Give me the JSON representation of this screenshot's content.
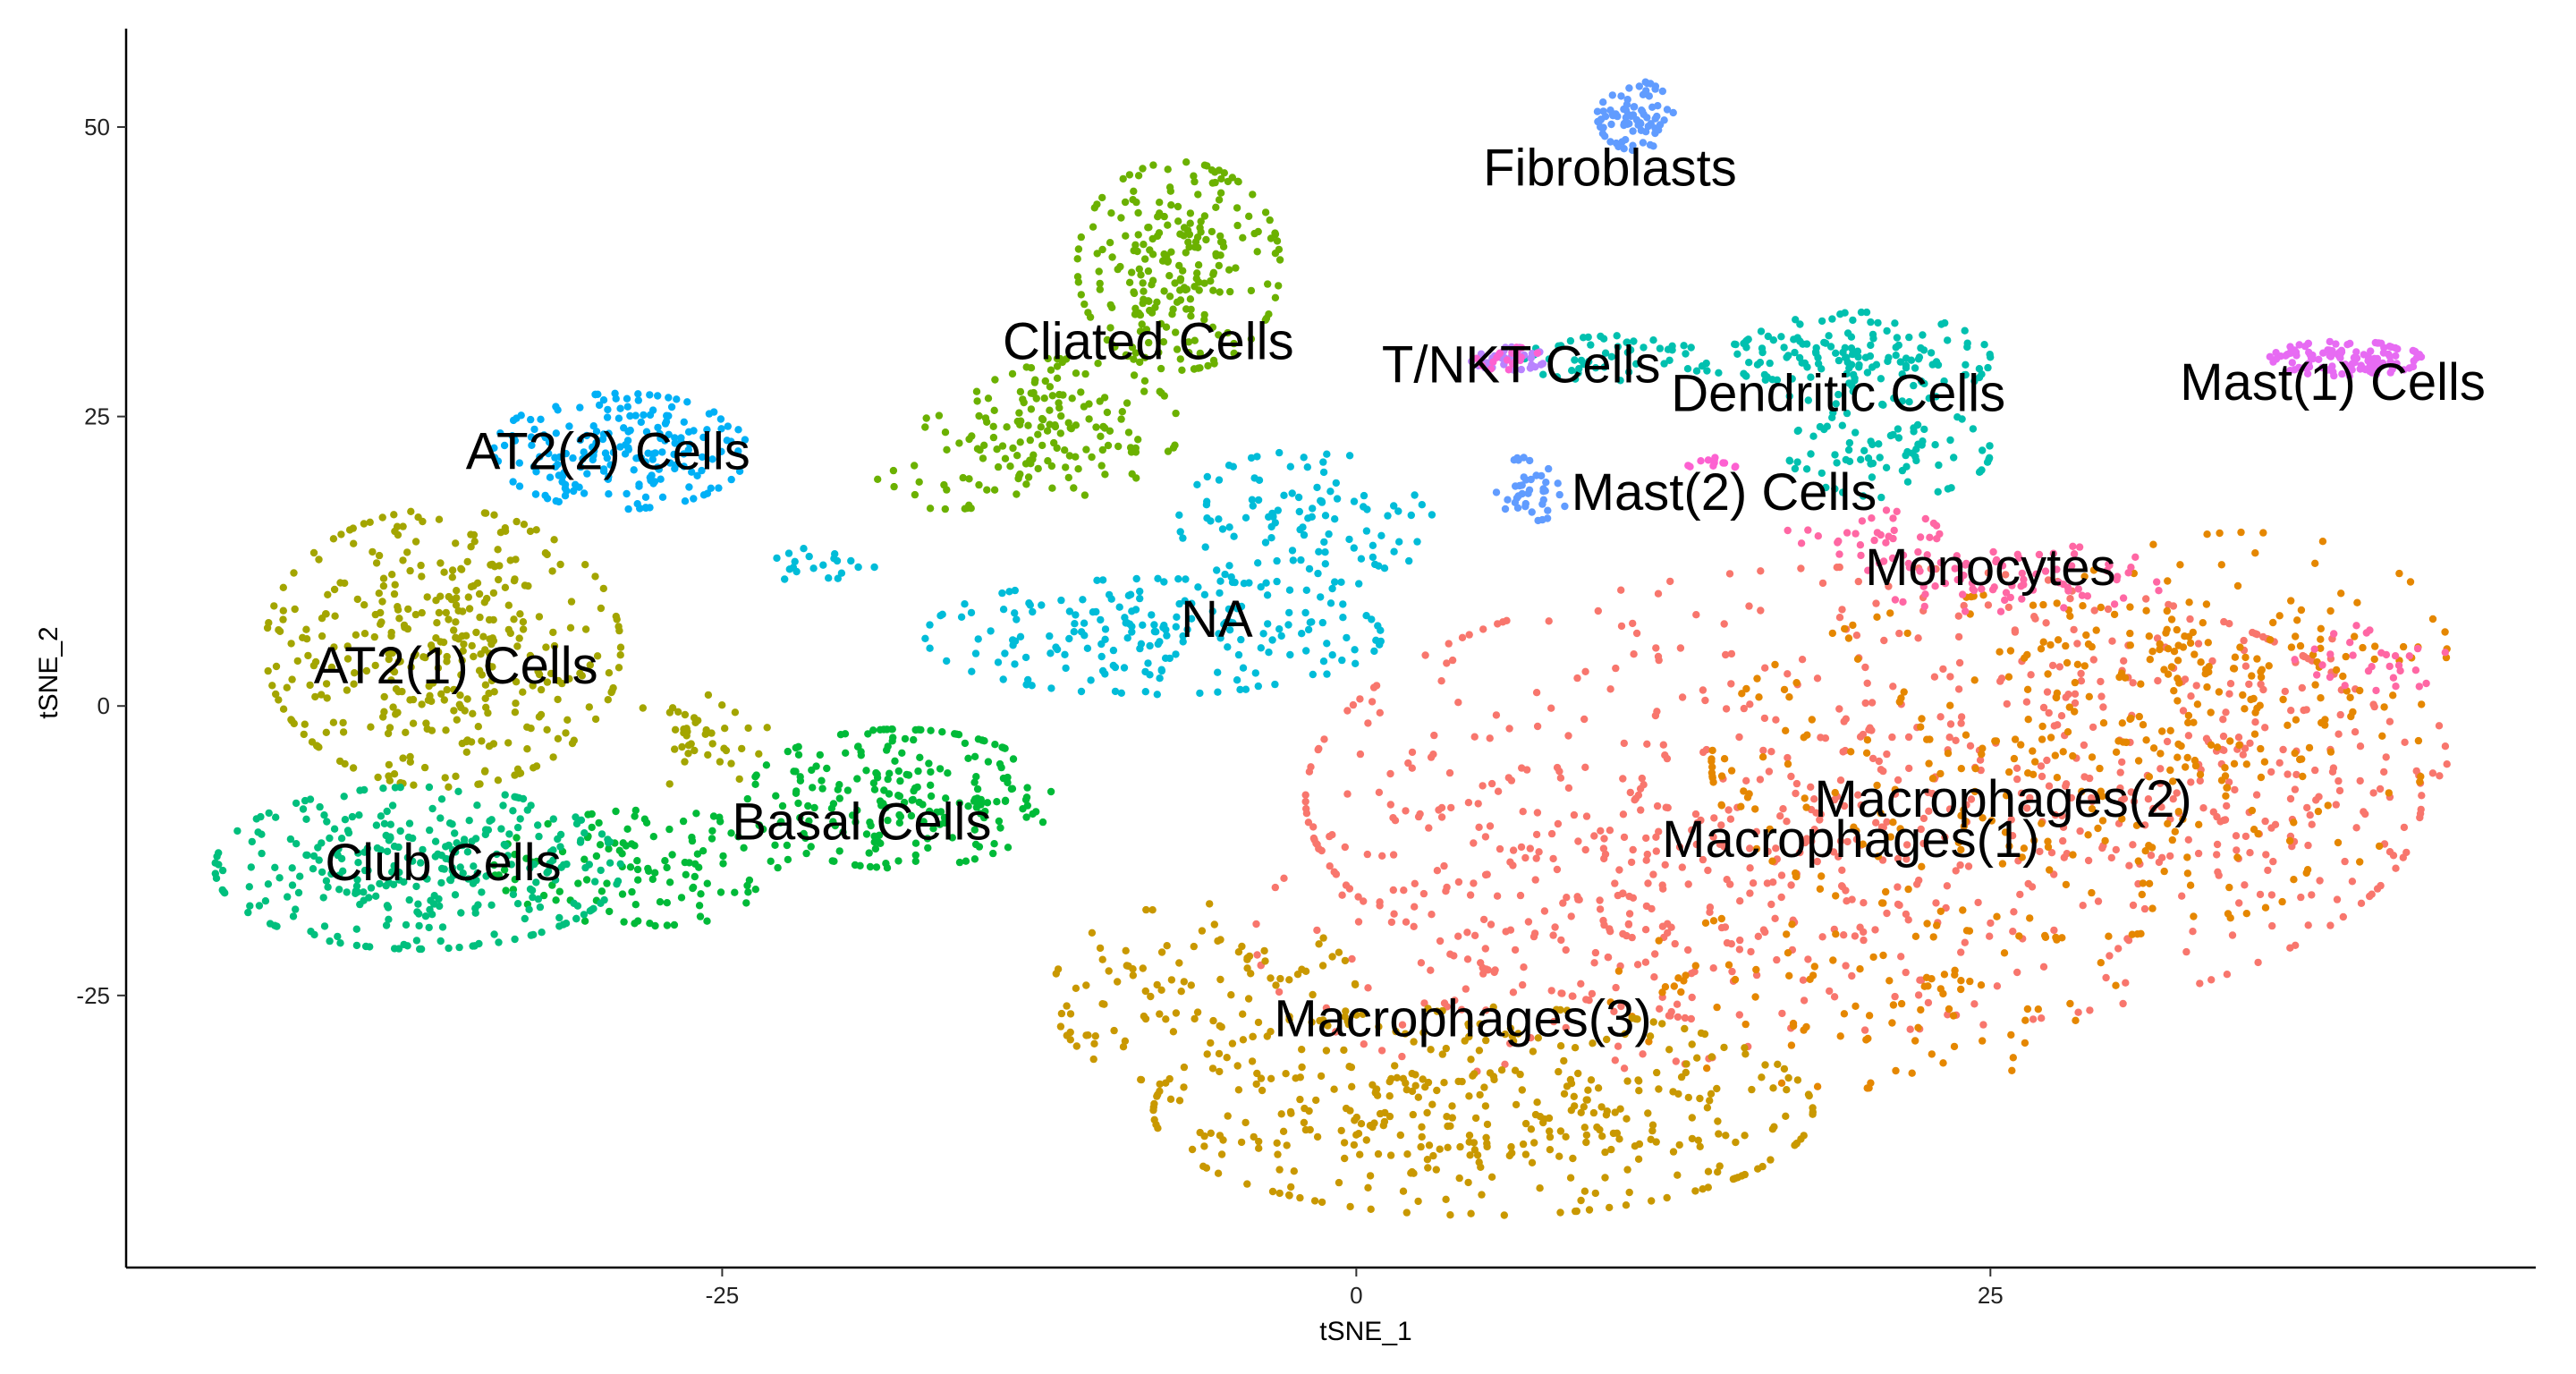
{
  "chart_data": {
    "type": "scatter",
    "title": "",
    "xlabel": "tSNE_1",
    "ylabel": "tSNE_2",
    "xlim": [
      -48.5,
      46.5
    ],
    "ylim": [
      -48.5,
      58.5
    ],
    "xticks": [
      -25,
      0,
      25
    ],
    "yticks": [
      -25,
      0,
      25,
      50
    ],
    "grid": false,
    "legend": "none",
    "clusters": [
      {
        "name": "Macrophages(1)",
        "color": "#F8766D",
        "label_pos": [
          19.5,
          -11.5
        ],
        "regions": [
          [
            20,
            -8,
            22,
            20,
            650
          ],
          [
            8,
            -20,
            12,
            12,
            180
          ],
          [
            35,
            -5,
            8,
            12,
            120
          ]
        ]
      },
      {
        "name": "Macrophages(2)",
        "color": "#E58700",
        "label_pos": [
          25.5,
          -8
        ],
        "regions": [
          [
            28,
            -5,
            14,
            15,
            300
          ],
          [
            35,
            5,
            8,
            10,
            120
          ],
          [
            20,
            -25,
            10,
            8,
            100
          ]
        ]
      },
      {
        "name": "Macrophages(3)",
        "color": "#C99800",
        "label_pos": [
          4.2,
          -27
        ],
        "regions": [
          [
            5,
            -35,
            13,
            9,
            400
          ],
          [
            -6,
            -25,
            6,
            8,
            110
          ]
        ]
      },
      {
        "name": "AT2(1) Cells",
        "color": "#A3A500",
        "label_pos": [
          -35.5,
          3.5
        ],
        "regions": [
          [
            -36,
            5,
            7,
            12,
            380
          ],
          [
            -26,
            -3,
            3,
            4,
            40
          ]
        ]
      },
      {
        "name": "Cliated Cells",
        "color": "#6BB100",
        "label_pos": [
          -8.2,
          31.5
        ],
        "regions": [
          [
            -7,
            38,
            4,
            9,
            240
          ],
          [
            -12,
            24,
            5,
            6,
            150
          ],
          [
            -16,
            19,
            3,
            2,
            20
          ]
        ]
      },
      {
        "name": "Basal Cells",
        "color": "#00BA38",
        "label_pos": [
          -19.5,
          -10
        ],
        "regions": [
          [
            -18,
            -8,
            6,
            6,
            220
          ],
          [
            -28,
            -14,
            6,
            5,
            120
          ]
        ]
      },
      {
        "name": "Club Cells",
        "color": "#00BF7D",
        "label_pos": [
          -36,
          -13.5
        ],
        "regions": [
          [
            -37,
            -14,
            8,
            7,
            320
          ]
        ]
      },
      {
        "name": "Dendritic Cells",
        "color": "#00C0AF",
        "label_pos": [
          19,
          27
        ],
        "regions": [
          [
            20,
            30,
            5,
            4,
            150
          ],
          [
            21,
            22,
            4,
            4,
            80
          ],
          [
            11,
            30,
            5,
            2,
            60
          ]
        ]
      },
      {
        "name": "NA",
        "color": "#00BCD8",
        "label_pos": [
          -5.5,
          7.5
        ],
        "regions": [
          [
            -8,
            6,
            9,
            5,
            200
          ],
          [
            -2,
            16,
            5,
            6,
            110
          ],
          [
            -21,
            12,
            2,
            2,
            20
          ]
        ]
      },
      {
        "name": "AT2(2) Cells",
        "color": "#00B0F6",
        "label_pos": [
          -29.5,
          22
        ],
        "regions": [
          [
            -29,
            22,
            5,
            5,
            200
          ]
        ]
      },
      {
        "name": "Fibroblasts",
        "color": "#619CFF",
        "label_pos": [
          10,
          46.5
        ],
        "regions": [
          [
            11,
            51,
            1.5,
            3,
            80
          ],
          [
            7,
            19,
            1.5,
            3,
            40
          ]
        ]
      },
      {
        "name": "T/NKT Cells",
        "color": "#B983FF",
        "label_pos": [
          6.5,
          29.5
        ],
        "regions": [
          [
            6,
            30,
            1.5,
            1,
            40
          ]
        ]
      },
      {
        "name": "Mast(1) Cells",
        "color": "#E76BF3",
        "label_pos": [
          38.5,
          28
        ],
        "regions": [
          [
            39,
            30,
            3,
            1.5,
            120
          ]
        ]
      },
      {
        "name": "Mast(2) Cells",
        "color": "#FD61D1",
        "label_pos": [
          14.5,
          18.5
        ],
        "regions": [
          [
            14,
            21,
            1,
            1,
            12
          ],
          [
            6,
            30,
            1.5,
            1,
            20
          ]
        ]
      },
      {
        "name": "Monocytes",
        "color": "#FF67A4",
        "label_pos": [
          25,
          12
        ],
        "regions": [
          [
            26,
            11,
            6,
            3,
            80
          ],
          [
            20,
            15,
            3,
            2,
            30
          ],
          [
            40,
            4,
            3,
            3,
            30
          ]
        ]
      }
    ]
  }
}
